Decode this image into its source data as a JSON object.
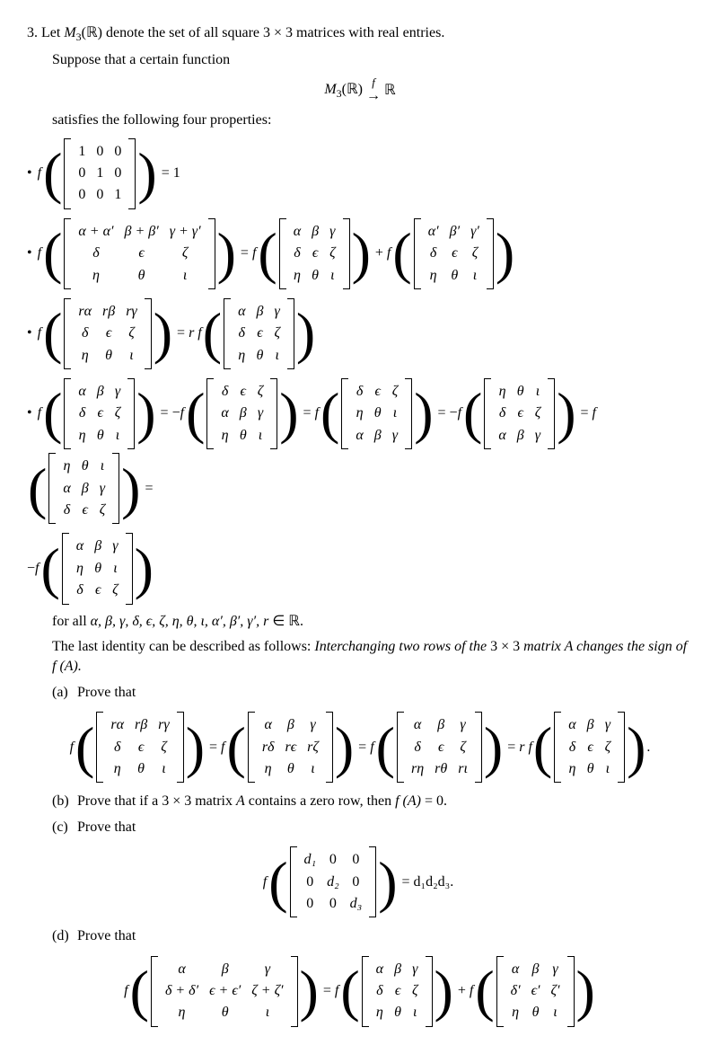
{
  "problem_number": "3.",
  "intro1_a": "Let ",
  "intro1_b": " denote the set of all square 3 × 3 matrices with real entries.",
  "M3R": "M",
  "sub3": "3",
  "Ropen": "(ℝ)",
  "intro2": "Suppose that a certain function",
  "arrow_label_top": "f",
  "arrow": "→",
  "Rsym": "ℝ",
  "satisfies": "satisfies the following four properties:",
  "identity_eq": "= 1",
  "eq": "=",
  "plus": "+",
  "minus_f": "−",
  "f": "f",
  "r": "r",
  "rf": "r f",
  "forall_a": "for all ",
  "forall_b": " ∈ ℝ.",
  "greek_list": "α, β, γ, δ, ϵ, ζ, η, θ, ι, α′, β′, γ′, r",
  "last_desc_a": "The last identity can be described as follows: ",
  "last_desc_b": "Interchanging two rows of the ",
  "last_desc_c": "3 × 3",
  "last_desc_d": " matrix A changes the sign of f (A).",
  "part_a": "(a)",
  "part_a_text": "Prove that",
  "part_b": "(b)",
  "part_b_text_a": "Prove that if a 3 × 3 matrix ",
  "part_b_text_b": " contains a zero row, then ",
  "part_b_text_c": " = 0.",
  "A": "A",
  "fA": "f (A)",
  "part_c": "(c)",
  "part_c_text": "Prove that",
  "part_c_rhs": "= d₁d₂d₃.",
  "part_d": "(d)",
  "part_d_text": "Prove that",
  "dot": ".",
  "sym": {
    "a": "α",
    "b": "β",
    "g": "γ",
    "d": "δ",
    "e": "ϵ",
    "z": "ζ",
    "h": "η",
    "t": "θ",
    "i": "ι",
    "ap": "α′",
    "bp": "β′",
    "gp": "γ′",
    "dp": "δ′",
    "ep": "ϵ′",
    "zp": "ζ′",
    "aa": "α + α′",
    "bb": "β + β′",
    "gg": "γ + γ′",
    "dd": "δ + δ′",
    "ee": "ϵ + ϵ′",
    "zz": "ζ + ζ′",
    "ra": "rα",
    "rb": "rβ",
    "rg": "rγ",
    "rd": "rδ",
    "re": "rϵ",
    "rz": "rζ",
    "rh": "rη",
    "rt": "rθ",
    "ri": "rι",
    "one": "1",
    "zero": "0",
    "d1": "d₁",
    "d2": "d₂",
    "d3": "d₃"
  }
}
